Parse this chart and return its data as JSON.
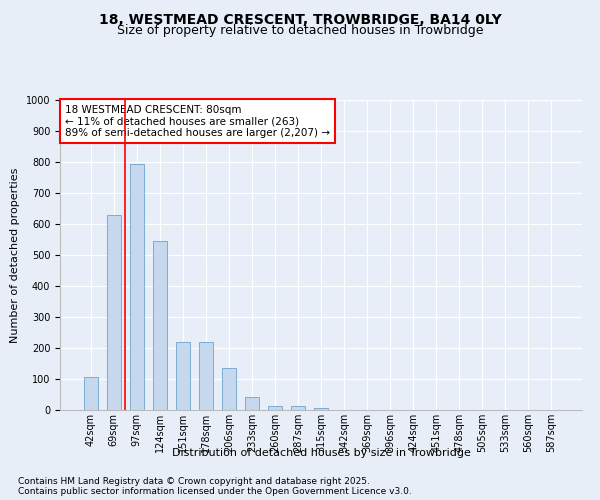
{
  "title_line1": "18, WESTMEAD CRESCENT, TROWBRIDGE, BA14 0LY",
  "title_line2": "Size of property relative to detached houses in Trowbridge",
  "xlabel": "Distribution of detached houses by size in Trowbridge",
  "ylabel": "Number of detached properties",
  "categories": [
    "42sqm",
    "69sqm",
    "97sqm",
    "124sqm",
    "151sqm",
    "178sqm",
    "206sqm",
    "233sqm",
    "260sqm",
    "287sqm",
    "315sqm",
    "342sqm",
    "369sqm",
    "396sqm",
    "424sqm",
    "451sqm",
    "478sqm",
    "505sqm",
    "533sqm",
    "560sqm",
    "587sqm"
  ],
  "values": [
    105,
    630,
    795,
    545,
    218,
    218,
    137,
    42,
    14,
    14,
    8,
    0,
    0,
    0,
    0,
    0,
    0,
    0,
    0,
    0,
    0
  ],
  "bar_color": "#c5d8ee",
  "bar_edge_color": "#7aadd4",
  "bar_edge_width": 0.7,
  "bar_width": 0.6,
  "vline_x": 1.5,
  "vline_color": "red",
  "vline_linewidth": 1.2,
  "ylim": [
    0,
    1000
  ],
  "yticks": [
    0,
    100,
    200,
    300,
    400,
    500,
    600,
    700,
    800,
    900,
    1000
  ],
  "background_color": "#e8eef8",
  "plot_bg_color": "#e8eef8",
  "annotation_title": "18 WESTMEAD CRESCENT: 80sqm",
  "annotation_line1": "← 11% of detached houses are smaller (263)",
  "annotation_line2": "89% of semi-detached houses are larger (2,207) →",
  "annotation_box_color": "#ffffff",
  "annotation_edge_color": "red",
  "footnote1": "Contains HM Land Registry data © Crown copyright and database right 2025.",
  "footnote2": "Contains public sector information licensed under the Open Government Licence v3.0.",
  "title_fontsize": 10,
  "subtitle_fontsize": 9,
  "xlabel_fontsize": 8,
  "ylabel_fontsize": 8,
  "tick_fontsize": 7,
  "annotation_fontsize": 7.5,
  "footnote_fontsize": 6.5,
  "grid_color": "#ffffff",
  "grid_linewidth": 0.8
}
